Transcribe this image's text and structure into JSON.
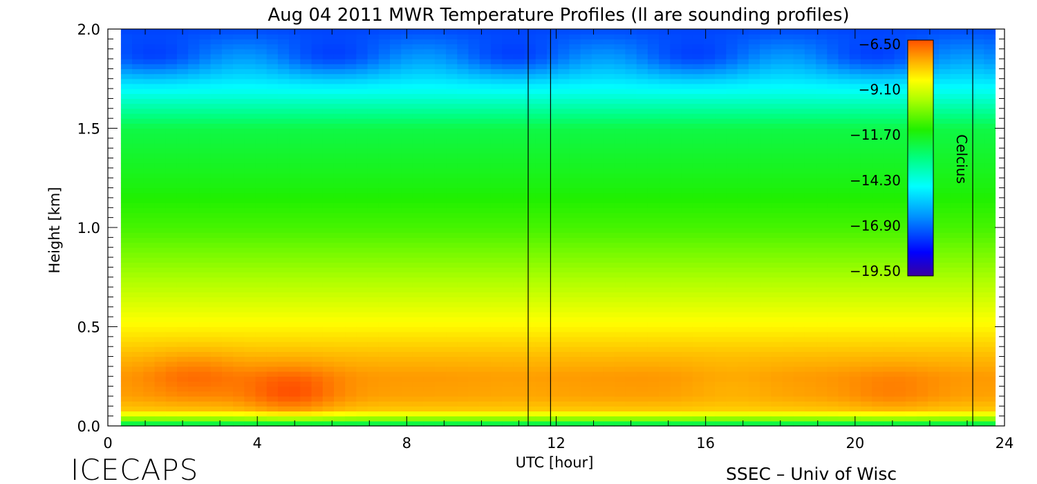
{
  "chart_data": {
    "type": "heatmap",
    "title": "Aug 04 2011 MWR Temperature Profiles (ll are sounding profiles)",
    "xlabel": "UTC [hour]",
    "ylabel": "Height [km]",
    "xlim": [
      0,
      24
    ],
    "ylim": [
      0.0,
      2.0
    ],
    "x_ticks": [
      "0",
      "4",
      "8",
      "12",
      "16",
      "20",
      "24"
    ],
    "y_ticks": [
      "0.0",
      "0.5",
      "1.0",
      "1.5",
      "2.0"
    ],
    "data_extent_hours": [
      0.35,
      23.75
    ],
    "sounding_profiles_utc": [
      11.25,
      11.85,
      23.15
    ],
    "colorbar": {
      "label": "Celcius",
      "min": -19.5,
      "max": -6.5,
      "tick_values": [
        -6.5,
        -9.1,
        -11.7,
        -14.3,
        -16.9,
        -19.5
      ],
      "tick_labels": [
        "−6.50",
        "−9.10",
        "−11.70",
        "−14.30",
        "−16.90",
        "−19.50"
      ]
    },
    "profile_heights_km": [
      0.0,
      0.03,
      0.08,
      0.15,
      0.25,
      0.35,
      0.5,
      0.7,
      1.0,
      1.2,
      1.5,
      1.7,
      1.85,
      2.0
    ],
    "mean_profile_celsius": [
      -13.5,
      -10.5,
      -8.0,
      -7.5,
      -7.4,
      -7.8,
      -8.6,
      -9.6,
      -11.0,
      -11.6,
      -12.3,
      -14.5,
      -16.0,
      -17.2
    ],
    "warm_core_maxima": [
      {
        "hour": 2.3,
        "height_km": 0.25,
        "celsius": -7.0
      },
      {
        "hour": 4.9,
        "height_km": 0.17,
        "celsius": -6.8
      },
      {
        "hour": 10.8,
        "height_km": 0.2,
        "celsius": -7.5
      },
      {
        "hour": 14.6,
        "height_km": 0.22,
        "celsius": -7.4
      },
      {
        "hour": 16.7,
        "height_km": 0.2,
        "celsius": -7.6
      },
      {
        "hour": 21.0,
        "height_km": 0.17,
        "celsius": -7.2
      }
    ]
  },
  "footer": {
    "left": "ICECAPS",
    "right": "SSEC – Univ of Wisc"
  }
}
